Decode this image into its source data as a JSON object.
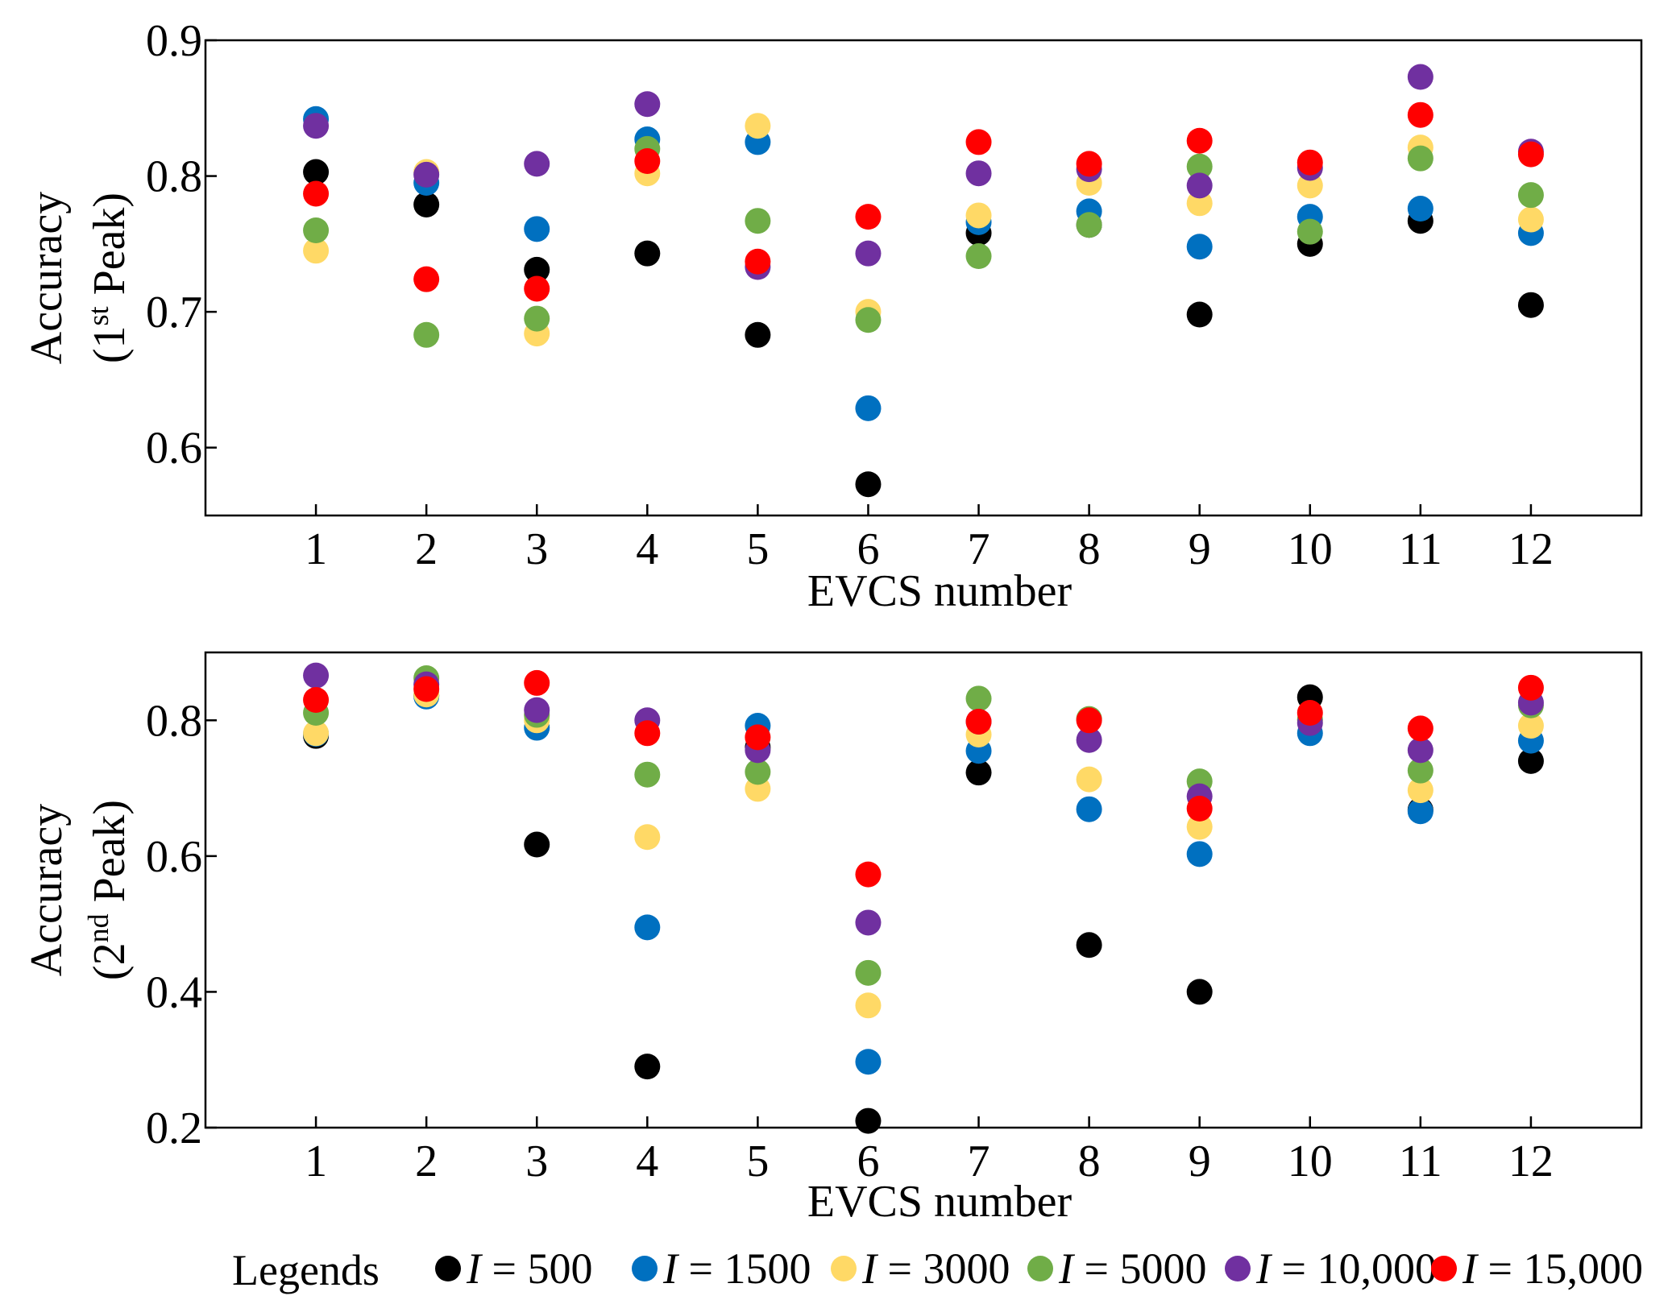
{
  "legend": {
    "title": "Legends",
    "entries": [
      {
        "var": "I",
        "text": " = 500",
        "color": "#000000"
      },
      {
        "var": "I",
        "text": " = 1500",
        "color": "#0070C0"
      },
      {
        "var": "I",
        "text": " = 3000",
        "color": "#FFD966"
      },
      {
        "var": "I",
        "text": " = 5000",
        "color": "#70AD47"
      },
      {
        "var": "I",
        "text": " = 10,000",
        "color": "#7030A0"
      },
      {
        "var": "I",
        "text": " = 15,000",
        "color": "#FF0000"
      }
    ]
  },
  "chart_data": [
    {
      "type": "scatter",
      "xlabel": "EVCS number",
      "ylabel_line1": "Accuracy",
      "ylabel_line2": {
        "pre": "(1",
        "sup": "st",
        "post": " Peak)"
      },
      "categories": [
        "1",
        "2",
        "3",
        "4",
        "5",
        "6",
        "7",
        "8",
        "9",
        "10",
        "11",
        "12"
      ],
      "ylim": [
        0.55,
        0.9
      ],
      "yticks": [
        0.6,
        0.7,
        0.8,
        0.9
      ],
      "ytick_labels": [
        "0.6",
        "0.7",
        "0.8",
        "0.9"
      ],
      "grid": false,
      "series": [
        {
          "name": "I = 500",
          "color": "#000000",
          "values": [
            0.803,
            0.779,
            0.731,
            0.743,
            0.683,
            0.573,
            0.758,
            0.764,
            0.698,
            0.75,
            0.767,
            0.705
          ]
        },
        {
          "name": "I = 1500",
          "color": "#0070C0",
          "values": [
            0.842,
            0.795,
            0.761,
            0.827,
            0.825,
            0.629,
            0.766,
            0.774,
            0.748,
            0.77,
            0.776,
            0.758
          ]
        },
        {
          "name": "I = 3000",
          "color": "#FFD966",
          "values": [
            0.745,
            0.803,
            0.684,
            0.802,
            0.837,
            0.7,
            0.771,
            0.795,
            0.78,
            0.793,
            0.821,
            0.768
          ]
        },
        {
          "name": "I = 5000",
          "color": "#70AD47",
          "values": [
            0.76,
            0.683,
            0.695,
            0.82,
            0.767,
            0.694,
            0.741,
            0.764,
            0.807,
            0.759,
            0.813,
            0.786
          ]
        },
        {
          "name": "I = 10,000",
          "color": "#7030A0",
          "values": [
            0.837,
            0.801,
            0.809,
            0.853,
            0.733,
            0.743,
            0.802,
            0.805,
            0.793,
            0.806,
            0.873,
            0.818
          ]
        },
        {
          "name": "I = 15,000",
          "color": "#FF0000",
          "values": [
            0.787,
            0.724,
            0.717,
            0.811,
            0.737,
            0.77,
            0.825,
            0.809,
            0.826,
            0.81,
            0.845,
            0.816
          ]
        }
      ]
    },
    {
      "type": "scatter",
      "xlabel": "EVCS number",
      "ylabel_line1": "Accuracy",
      "ylabel_line2": {
        "pre": "(2",
        "sup": "nd",
        "post": " Peak)"
      },
      "categories": [
        "1",
        "2",
        "3",
        "4",
        "5",
        "6",
        "7",
        "8",
        "9",
        "10",
        "11",
        "12"
      ],
      "ylim": [
        0.2,
        0.9
      ],
      "yticks": [
        0.2,
        0.4,
        0.6,
        0.8
      ],
      "ytick_labels": [
        "0.2",
        "0.4",
        "0.6",
        "0.8"
      ],
      "grid": false,
      "series": [
        {
          "name": "I = 500",
          "color": "#000000",
          "values": [
            0.777,
            0.837,
            0.617,
            0.29,
            0.76,
            0.21,
            0.723,
            0.469,
            0.4,
            0.834,
            0.668,
            0.74
          ]
        },
        {
          "name": "I = 1500",
          "color": "#0070C0",
          "values": [
            0.78,
            0.835,
            0.789,
            0.495,
            0.792,
            0.297,
            0.755,
            0.669,
            0.603,
            0.781,
            0.666,
            0.77
          ]
        },
        {
          "name": "I = 3000",
          "color": "#FFD966",
          "values": [
            0.781,
            0.838,
            0.8,
            0.628,
            0.699,
            0.38,
            0.779,
            0.713,
            0.643,
            0.8,
            0.697,
            0.792
          ]
        },
        {
          "name": "I = 5000",
          "color": "#70AD47",
          "values": [
            0.811,
            0.862,
            0.808,
            0.72,
            0.724,
            0.428,
            0.832,
            0.802,
            0.71,
            0.801,
            0.726,
            0.822
          ]
        },
        {
          "name": "I = 10,000",
          "color": "#7030A0",
          "values": [
            0.866,
            0.853,
            0.815,
            0.8,
            0.756,
            0.502,
            0.798,
            0.771,
            0.688,
            0.796,
            0.756,
            0.826
          ]
        },
        {
          "name": "I = 15,000",
          "color": "#FF0000",
          "values": [
            0.83,
            0.846,
            0.855,
            0.781,
            0.775,
            0.573,
            0.798,
            0.8,
            0.67,
            0.811,
            0.788,
            0.848
          ]
        }
      ]
    }
  ]
}
